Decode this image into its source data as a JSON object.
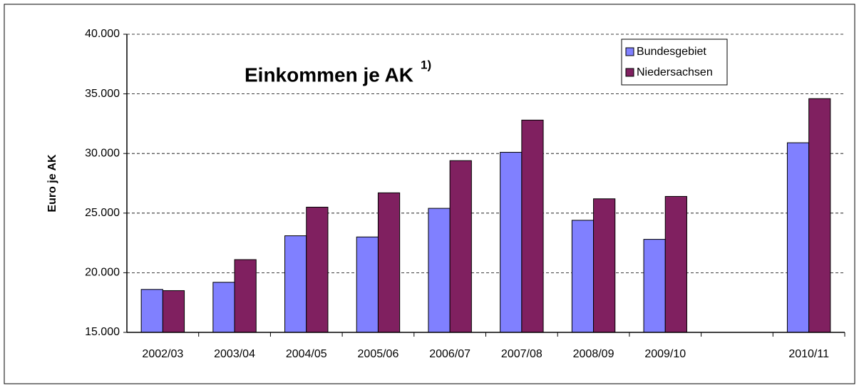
{
  "chart_data": {
    "type": "bar",
    "title": "Einkommen je AK",
    "title_note": "1)",
    "y_label": "Euro je AK",
    "categories": [
      "2002/03",
      "2003/04",
      "2004/05",
      "2005/06",
      "2006/07",
      "2007/08",
      "2008/09",
      "2009/10",
      null,
      "2010/11"
    ],
    "series": [
      {
        "name": "Bundesgebiet",
        "color": "#8080ff",
        "values": [
          18600,
          19200,
          23100,
          23000,
          25400,
          30100,
          24400,
          22800,
          null,
          30900
        ]
      },
      {
        "name": "Niedersachsen",
        "color": "#802060",
        "values": [
          18500,
          21100,
          25500,
          26700,
          29400,
          32800,
          26200,
          26400,
          null,
          34600
        ]
      }
    ],
    "ylim": [
      15000,
      40000
    ],
    "yticks": [
      {
        "value": 15000,
        "label": "15.000"
      },
      {
        "value": 20000,
        "label": "20.000"
      },
      {
        "value": 25000,
        "label": "25.000"
      },
      {
        "value": 30000,
        "label": "30.000"
      },
      {
        "value": 35000,
        "label": "35.000"
      },
      {
        "value": 40000,
        "label": "40.000"
      }
    ],
    "grid": true,
    "legend": "top-right"
  }
}
